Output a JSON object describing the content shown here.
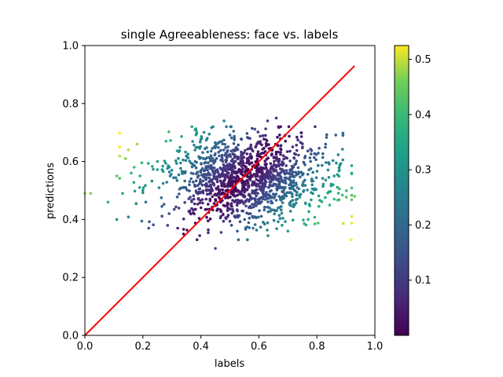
{
  "chart_data": {
    "type": "scatter",
    "title": "single Agreeableness: face vs. labels",
    "xlabel": "labels",
    "ylabel": "predictions",
    "xlim": [
      0.0,
      1.0
    ],
    "ylim": [
      0.0,
      1.0
    ],
    "xticks": [
      "0.0",
      "0.2",
      "0.4",
      "0.6",
      "0.8",
      "1.0"
    ],
    "yticks": [
      "0.0",
      "0.2",
      "0.4",
      "0.6",
      "0.8",
      "1.0"
    ],
    "grid": false,
    "colormap": "viridis",
    "colorbar": {
      "range": [
        0.0,
        0.525
      ],
      "ticks": [
        "0.1",
        "0.2",
        "0.3",
        "0.4",
        "0.5"
      ],
      "tick_values": [
        0.1,
        0.2,
        0.3,
        0.4,
        0.5
      ]
    },
    "reference_line": {
      "x": [
        0.0,
        0.93
      ],
      "y": [
        0.0,
        0.93
      ],
      "color": "#ff0000"
    },
    "scatter_summary": {
      "count": 1400,
      "x_mean": 0.56,
      "x_std": 0.14,
      "y_mean": 0.54,
      "y_std": 0.075,
      "color_value": "abs(prediction - label)"
    },
    "points": [
      [
        0.02,
        0.49
      ],
      [
        0.0,
        0.49
      ],
      [
        0.08,
        0.46
      ],
      [
        0.11,
        0.4
      ],
      [
        0.11,
        0.55
      ],
      [
        0.12,
        0.65
      ],
      [
        0.14,
        0.61
      ],
      [
        0.15,
        0.64
      ],
      [
        0.13,
        0.49
      ],
      [
        0.17,
        0.58
      ],
      [
        0.16,
        0.56
      ],
      [
        0.18,
        0.66
      ],
      [
        0.19,
        0.55
      ],
      [
        0.2,
        0.5
      ],
      [
        0.21,
        0.46
      ],
      [
        0.22,
        0.37
      ],
      [
        0.25,
        0.6
      ],
      [
        0.28,
        0.67
      ],
      [
        0.3,
        0.57
      ],
      [
        0.34,
        0.35
      ],
      [
        0.38,
        0.71
      ],
      [
        0.45,
        0.3
      ],
      [
        0.48,
        0.74
      ],
      [
        0.63,
        0.74
      ],
      [
        0.66,
        0.75
      ],
      [
        0.7,
        0.36
      ],
      [
        0.77,
        0.4
      ],
      [
        0.83,
        0.66
      ],
      [
        0.89,
        0.69
      ],
      [
        0.93,
        0.48
      ],
      [
        0.92,
        0.56
      ],
      [
        0.86,
        0.47
      ],
      [
        0.68,
        0.38
      ],
      [
        0.58,
        0.37
      ],
      [
        0.32,
        0.37
      ]
    ]
  }
}
